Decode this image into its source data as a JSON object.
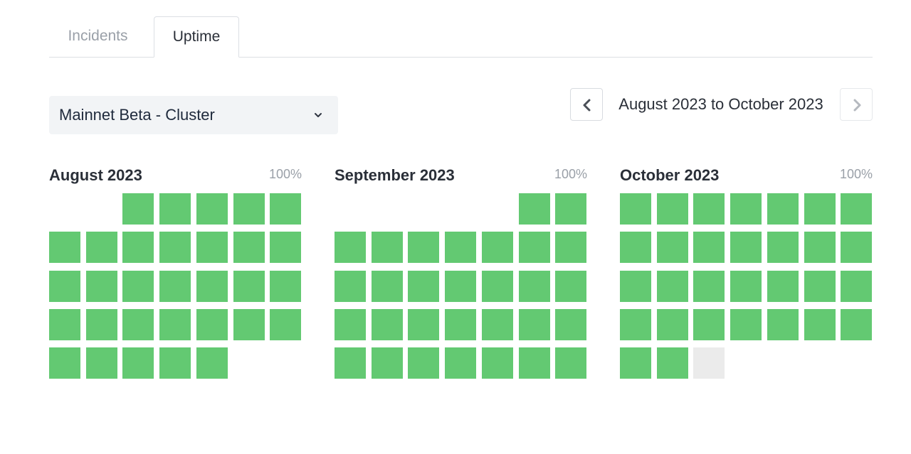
{
  "tabs": [
    {
      "label": "Incidents",
      "active": false
    },
    {
      "label": "Uptime",
      "active": true
    }
  ],
  "select": {
    "value": "Mainnet Beta - Cluster",
    "icon": "chevron-down-icon"
  },
  "range": {
    "label": "August 2023 to October 2023",
    "prev_icon": "chevron-left-icon",
    "next_icon": "chevron-right-icon"
  },
  "colors": {
    "up": "#63c972",
    "future": "#ebebeb"
  },
  "months": [
    {
      "title": "August 2023",
      "percent": "100%",
      "start_weekday": 2,
      "days": 31,
      "future_from": null
    },
    {
      "title": "September 2023",
      "percent": "100%",
      "start_weekday": 5,
      "days": 30,
      "future_from": null
    },
    {
      "title": "October 2023",
      "percent": "100%",
      "start_weekday": 0,
      "days": 31,
      "future_from": 31
    }
  ]
}
